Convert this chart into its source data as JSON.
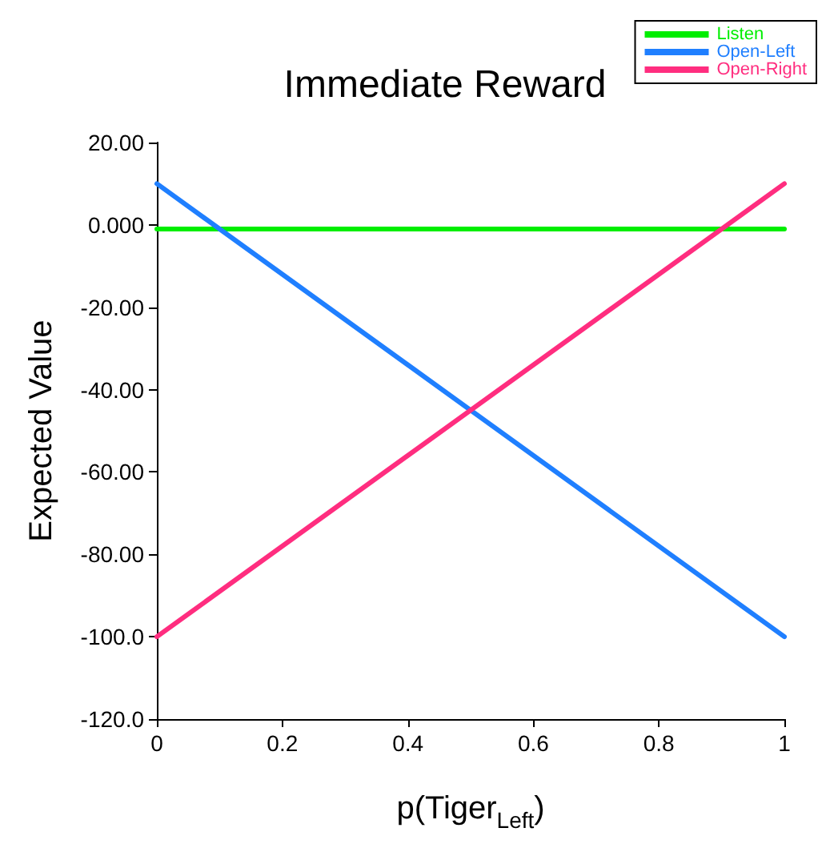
{
  "chart_data": {
    "type": "line",
    "title": "Immediate Reward",
    "xlabel": "p(Tiger$_{Left}$)",
    "ylabel": "Expected Value",
    "x": [
      0,
      1
    ],
    "series": [
      {
        "name": "Listen",
        "color": "#00ee00",
        "values": [
          -1,
          -1
        ]
      },
      {
        "name": "Open-Left",
        "color": "#1f7fff",
        "values": [
          10,
          -100
        ]
      },
      {
        "name": "Open-Right",
        "color": "#ff2d7f",
        "values": [
          -100,
          10
        ]
      }
    ],
    "xlim": [
      0,
      1
    ],
    "xticks": [
      0,
      0.2,
      0.4,
      0.6,
      0.8,
      1
    ],
    "ylim": [
      -120,
      20
    ],
    "yticks": [
      {
        "value": 20,
        "label": "20.00"
      },
      {
        "value": 0,
        "label": "0.000"
      },
      {
        "value": -20,
        "label": "-20.00"
      },
      {
        "value": -40,
        "label": "-40.00"
      },
      {
        "value": -60,
        "label": "-60.00"
      },
      {
        "value": -80,
        "label": "-80.00"
      },
      {
        "value": -100,
        "label": "-100.0"
      },
      {
        "value": -120,
        "label": "-120.0"
      }
    ],
    "grid": false,
    "legend": "top right",
    "marker": "none",
    "line_style": "solid"
  }
}
